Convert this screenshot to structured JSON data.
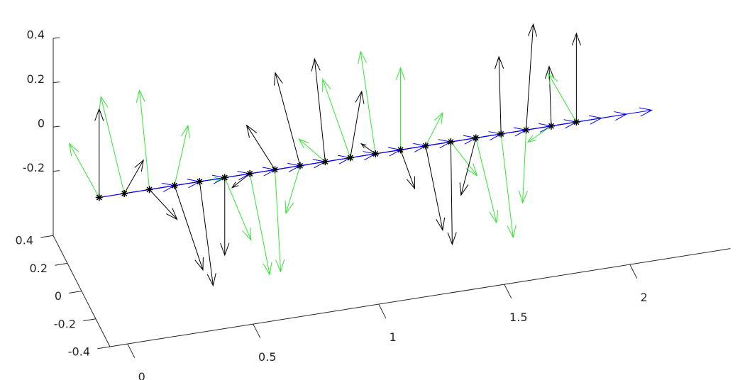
{
  "chart_data": {
    "type": "quiver3d",
    "xlim": [
      -0.07,
      2.4
    ],
    "ylim": [
      -0.4,
      0.4
    ],
    "zlim": [
      -0.49,
      0.4
    ],
    "xticks": [
      0,
      0.5,
      1,
      1.5,
      2
    ],
    "yticks": [
      -0.4,
      -0.2,
      0,
      0.2,
      0.4
    ],
    "zticks": [
      -0.2,
      0,
      0.2,
      0.4
    ],
    "curve": {
      "color": "#8b1a8b",
      "x": [
        0,
        0.1,
        0.2,
        0.3,
        0.4,
        0.5,
        0.6,
        0.7,
        0.8,
        0.9,
        1.0,
        1.1,
        1.2,
        1.3,
        1.4,
        1.5,
        1.6,
        1.7,
        1.8,
        1.9
      ],
      "y": [
        0,
        0,
        0,
        0,
        0,
        0,
        0,
        0,
        0,
        0,
        0,
        0,
        0,
        0,
        0,
        0,
        0,
        0,
        0,
        0
      ],
      "z": [
        -0.08,
        -0.08,
        -0.08,
        -0.08,
        -0.08,
        -0.08,
        -0.08,
        -0.08,
        -0.08,
        -0.08,
        -0.08,
        -0.08,
        -0.08,
        -0.08,
        -0.08,
        -0.08,
        -0.08,
        -0.08,
        -0.08,
        -0.08
      ]
    },
    "tangent": {
      "color": "#0000ff",
      "dx": [
        0.3,
        0.3,
        0.3,
        0.3,
        0.3,
        0.3,
        0.3,
        0.3,
        0.3,
        0.3,
        0.3,
        0.3,
        0.3,
        0.3,
        0.3,
        0.3,
        0.3,
        0.3,
        0.3,
        0.3
      ],
      "dy": [
        0,
        0,
        0,
        0,
        0,
        0,
        0,
        0,
        0,
        0,
        0,
        0,
        0,
        0,
        0,
        0,
        0,
        0,
        0,
        0
      ],
      "dz": [
        0,
        0,
        0,
        0,
        0,
        0,
        0,
        0,
        0,
        0,
        0,
        0,
        0,
        0,
        0,
        0,
        0,
        0,
        0,
        0
      ]
    },
    "normal": {
      "color": "#000000",
      "dy": [
        0,
        -0.27,
        -0.39,
        -0.4,
        -0.19,
        0,
        0.25,
        0.4,
        0.35,
        0.15,
        -0.16,
        0.2,
        -0.2,
        -0.24,
        -0.02,
        0.21,
        0.03,
        -0.1,
        0.03,
        0
      ],
      "dz": [
        0.4,
        0.32,
        0.11,
        -0.13,
        -0.35,
        -0.35,
        -0.22,
        -0.05,
        0.2,
        0.37,
        0.4,
        -0.08,
        -0.05,
        -0.23,
        -0.45,
        -0.39,
        0.33,
        0.54,
        0.25,
        0.4
      ]
    },
    "binormal": {
      "color": "#33e633",
      "dy": [
        0.42,
        0.33,
        0.14,
        -0.19,
        -0.3,
        -0.37,
        -0.28,
        -0.08,
        0.2,
        0.37,
        0.39,
        0.21,
        0,
        -0.24,
        -0.37,
        -0.29,
        -0.17,
        0.05,
        0.33,
        0.4
      ],
      "dz": [
        -0.02,
        0.23,
        0.36,
        0.39,
        0.2,
        -0.05,
        -0.28,
        -0.41,
        -0.34,
        -0.13,
        0.11,
        0.33,
        0.37,
        0.3,
        0.08,
        -0.2,
        -0.36,
        -0.36,
        -0.28,
        -0.03
      ]
    }
  }
}
